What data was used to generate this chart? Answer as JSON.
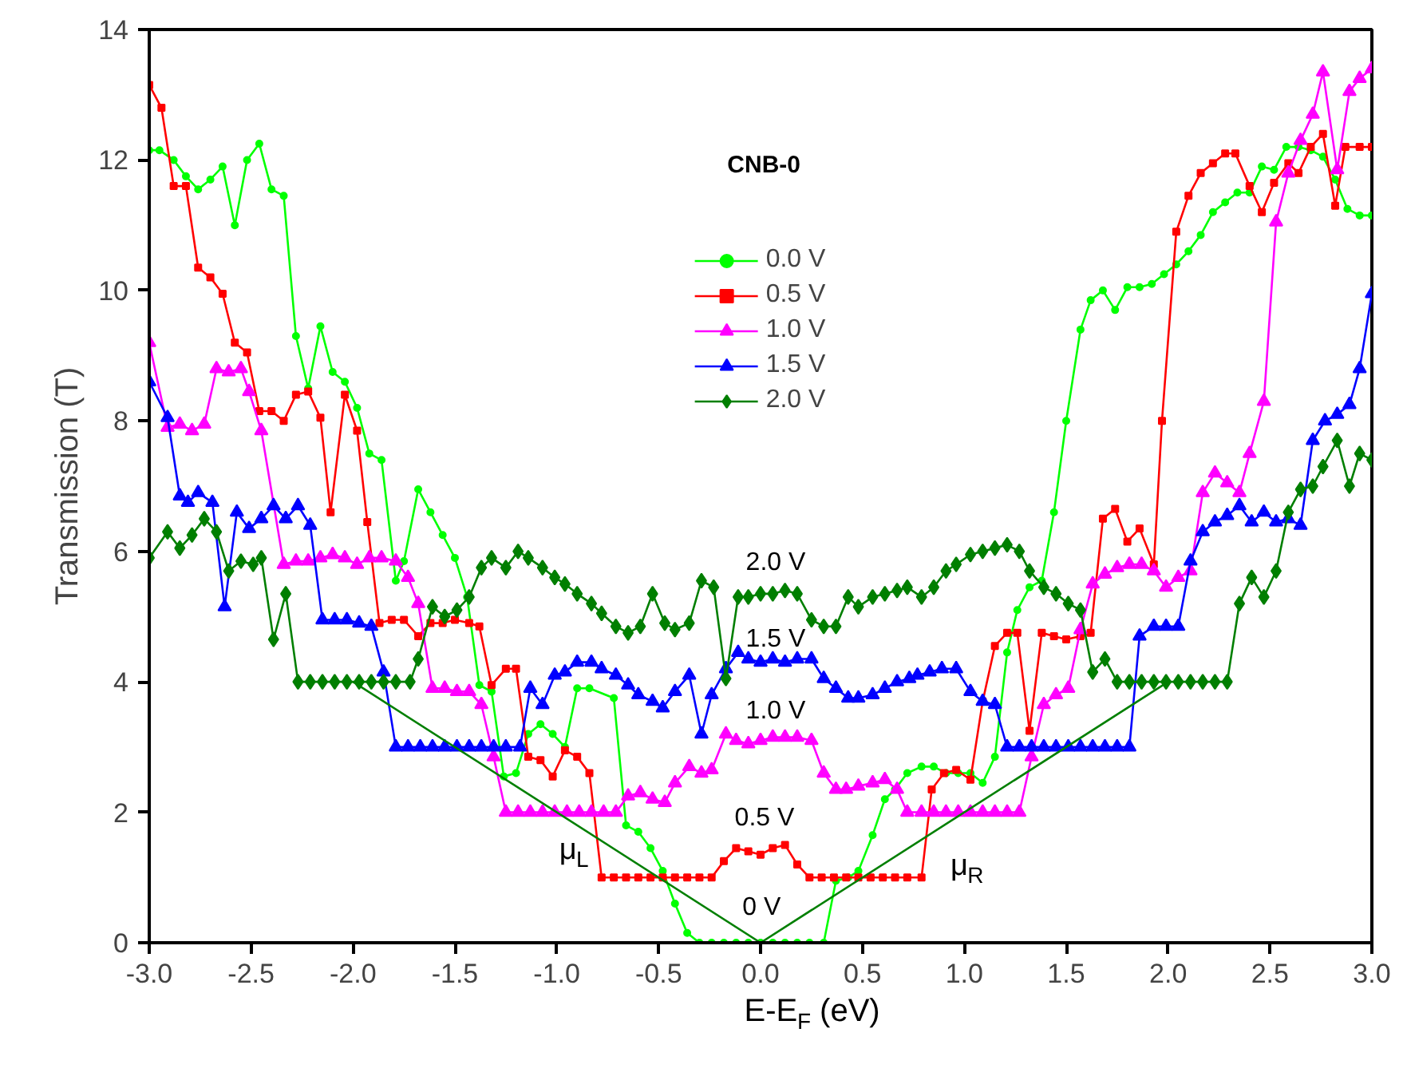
{
  "chart_data": {
    "type": "line",
    "title": "CNB-0",
    "xlabel": "E-E$_{F}$ (eV)",
    "ylabel": "Transmission (T)",
    "xlim": [
      -3.0,
      3.0
    ],
    "ylim": [
      0,
      14
    ],
    "xticks": [
      {
        "value": -3,
        "label": "-3.0"
      },
      {
        "value": -2.5,
        "label": "-2.5"
      },
      {
        "value": -2,
        "label": "-2.0"
      },
      {
        "value": -1.5,
        "label": "-1.5"
      },
      {
        "value": -1,
        "label": "-1.0"
      },
      {
        "value": -0.5,
        "label": "-0.5"
      },
      {
        "value": 0,
        "label": "0.0"
      },
      {
        "value": 0.5,
        "label": "0.5"
      },
      {
        "value": 1,
        "label": "1.0"
      },
      {
        "value": 1.5,
        "label": "1.5"
      },
      {
        "value": 2,
        "label": "2.0"
      },
      {
        "value": 2.5,
        "label": "2.5"
      },
      {
        "value": 3,
        "label": "3.0"
      }
    ],
    "yticks": [
      0,
      2,
      4,
      6,
      8,
      10,
      12,
      14
    ],
    "grid": false,
    "legend": "top",
    "line_style": "solid",
    "series": [
      {
        "name": "0.0 V",
        "color": "#00ff00",
        "marker": "circle",
        "x": [
          -3.0,
          -2.95,
          -2.88,
          -2.82,
          -2.76,
          -2.7,
          -2.64,
          -2.58,
          -2.52,
          -2.46,
          -2.4,
          -2.34,
          -2.28,
          -2.22,
          -2.16,
          -2.1,
          -2.04,
          -1.98,
          -1.92,
          -1.86,
          -1.79,
          -1.75,
          -1.68,
          -1.62,
          -1.56,
          -1.5,
          -1.44,
          -1.38,
          -1.32,
          -1.26,
          -1.2,
          -1.14,
          -1.08,
          -1.02,
          -0.96,
          -0.9,
          -0.84,
          -0.72,
          -0.66,
          -0.6,
          -0.54,
          -0.48,
          -0.42,
          -0.36,
          -0.3,
          -0.24,
          -0.18,
          -0.12,
          -0.06,
          0.0,
          0.06,
          0.12,
          0.18,
          0.24,
          0.31,
          0.37,
          0.43,
          0.48,
          0.55,
          0.61,
          0.66,
          0.72,
          0.79,
          0.85,
          0.91,
          0.97,
          1.03,
          1.09,
          1.15,
          1.21,
          1.26,
          1.32,
          1.38,
          1.44,
          1.5,
          1.57,
          1.62,
          1.68,
          1.74,
          1.8,
          1.86,
          1.92,
          1.98,
          2.04,
          2.1,
          2.16,
          2.22,
          2.28,
          2.34,
          2.4,
          2.46,
          2.52,
          2.58,
          2.64,
          2.7,
          2.76,
          2.82,
          2.88,
          2.94,
          3.0
        ],
        "values": [
          12.15,
          12.15,
          12.0,
          11.75,
          11.55,
          11.7,
          11.9,
          11.0,
          12.0,
          12.25,
          11.55,
          11.45,
          9.3,
          8.5,
          9.45,
          8.75,
          8.6,
          8.2,
          7.5,
          7.4,
          5.55,
          5.85,
          6.95,
          6.6,
          6.25,
          5.9,
          5.3,
          3.95,
          3.85,
          2.55,
          2.6,
          3.2,
          3.35,
          3.2,
          3.0,
          3.9,
          3.9,
          3.75,
          1.8,
          1.7,
          1.45,
          1.1,
          0.6,
          0.15,
          0,
          0,
          0,
          0,
          0,
          0,
          0,
          0,
          0,
          0,
          0,
          0.95,
          1.0,
          1.1,
          1.65,
          2.2,
          2.35,
          2.6,
          2.7,
          2.7,
          2.6,
          2.6,
          2.6,
          2.45,
          2.85,
          4.45,
          5.1,
          5.45,
          5.55,
          6.6,
          8.0,
          9.4,
          9.85,
          10.0,
          9.7,
          10.05,
          10.05,
          10.1,
          10.25,
          10.4,
          10.6,
          10.85,
          11.2,
          11.35,
          11.5,
          11.5,
          11.9,
          11.85,
          12.2,
          12.2,
          12.15,
          12.05,
          11.7,
          11.25,
          11.15,
          11.15
        ]
      },
      {
        "name": "0.5 V",
        "color": "#ff0000",
        "marker": "square",
        "x": [
          -3.0,
          -2.94,
          -2.88,
          -2.82,
          -2.76,
          -2.7,
          -2.64,
          -2.58,
          -2.52,
          -2.46,
          -2.4,
          -2.34,
          -2.28,
          -2.22,
          -2.16,
          -2.11,
          -2.04,
          -1.98,
          -1.93,
          -1.87,
          -1.81,
          -1.75,
          -1.68,
          -1.62,
          -1.56,
          -1.5,
          -1.43,
          -1.38,
          -1.32,
          -1.25,
          -1.2,
          -1.14,
          -1.08,
          -1.02,
          -0.96,
          -0.9,
          -0.84,
          -0.78,
          -0.72,
          -0.66,
          -0.6,
          -0.54,
          -0.48,
          -0.42,
          -0.36,
          -0.3,
          -0.24,
          -0.18,
          -0.12,
          -0.06,
          0.0,
          0.06,
          0.12,
          0.18,
          0.24,
          0.3,
          0.36,
          0.42,
          0.48,
          0.54,
          0.6,
          0.66,
          0.72,
          0.79,
          0.84,
          0.9,
          0.96,
          1.03,
          1.09,
          1.15,
          1.21,
          1.26,
          1.32,
          1.38,
          1.44,
          1.5,
          1.57,
          1.62,
          1.68,
          1.74,
          1.8,
          1.86,
          1.93,
          1.97,
          2.04,
          2.1,
          2.16,
          2.22,
          2.28,
          2.33,
          2.4,
          2.46,
          2.52,
          2.59,
          2.64,
          2.7,
          2.76,
          2.82,
          2.87,
          2.94,
          3.0
        ],
        "values": [
          13.15,
          12.8,
          11.6,
          11.6,
          10.35,
          10.2,
          9.95,
          9.2,
          9.05,
          8.15,
          8.15,
          8.0,
          8.4,
          8.45,
          8.05,
          6.6,
          8.4,
          7.85,
          6.45,
          4.9,
          4.95,
          4.95,
          4.7,
          4.9,
          4.9,
          4.95,
          4.9,
          4.85,
          3.95,
          4.2,
          4.2,
          2.85,
          2.8,
          2.55,
          2.95,
          2.85,
          2.6,
          1.0,
          1.0,
          1.0,
          1.0,
          1.0,
          1.0,
          1.0,
          1.0,
          1.0,
          1.0,
          1.25,
          1.45,
          1.4,
          1.35,
          1.45,
          1.5,
          1.2,
          1.0,
          1.0,
          1.0,
          1.0,
          1.0,
          1.0,
          1.0,
          1.0,
          1.0,
          1.0,
          2.35,
          2.6,
          2.65,
          2.5,
          3.7,
          4.55,
          4.75,
          4.75,
          3.25,
          4.75,
          4.7,
          4.65,
          4.7,
          4.75,
          6.5,
          6.65,
          6.15,
          6.35,
          5.8,
          8.0,
          10.9,
          11.45,
          11.8,
          11.95,
          12.1,
          12.1,
          11.6,
          11.2,
          11.65,
          11.95,
          11.8,
          12.2,
          12.4,
          11.3,
          12.2,
          12.2,
          12.2
        ]
      },
      {
        "name": "1.0 V",
        "color": "#ff00ff",
        "marker": "triangle",
        "x": [
          -3.0,
          -2.91,
          -2.85,
          -2.79,
          -2.73,
          -2.67,
          -2.61,
          -2.55,
          -2.51,
          -2.45,
          -2.34,
          -2.28,
          -2.22,
          -2.16,
          -2.1,
          -2.04,
          -1.98,
          -1.92,
          -1.86,
          -1.79,
          -1.73,
          -1.68,
          -1.61,
          -1.55,
          -1.49,
          -1.43,
          -1.37,
          -1.31,
          -1.25,
          -1.19,
          -1.13,
          -1.07,
          -1.01,
          -0.95,
          -0.89,
          -0.83,
          -0.77,
          -0.71,
          -0.65,
          -0.59,
          -0.53,
          -0.47,
          -0.42,
          -0.35,
          -0.29,
          -0.24,
          -0.17,
          -0.12,
          -0.06,
          0.0,
          0.06,
          0.12,
          0.18,
          0.25,
          0.31,
          0.37,
          0.42,
          0.48,
          0.55,
          0.61,
          0.67,
          0.72,
          0.79,
          0.85,
          0.91,
          0.97,
          1.03,
          1.09,
          1.15,
          1.21,
          1.27,
          1.33,
          1.39,
          1.45,
          1.51,
          1.57,
          1.63,
          1.69,
          1.75,
          1.81,
          1.87,
          1.93,
          1.99,
          2.05,
          2.11,
          2.17,
          2.23,
          2.29,
          2.35,
          2.4,
          2.47,
          2.53,
          2.59,
          2.65,
          2.71,
          2.76,
          2.83,
          2.89,
          2.94,
          3.0
        ],
        "values": [
          9.2,
          7.9,
          7.95,
          7.85,
          7.95,
          8.8,
          8.75,
          8.8,
          8.45,
          7.85,
          5.8,
          5.85,
          5.85,
          5.9,
          5.95,
          5.9,
          5.8,
          5.9,
          5.9,
          5.85,
          5.6,
          5.2,
          3.9,
          3.9,
          3.85,
          3.85,
          3.65,
          2.85,
          2.0,
          2.0,
          2.0,
          2.0,
          2.0,
          2.0,
          2.0,
          2.0,
          2.0,
          2.0,
          2.25,
          2.3,
          2.2,
          2.15,
          2.45,
          2.7,
          2.6,
          2.65,
          3.2,
          3.1,
          3.05,
          3.1,
          3.15,
          3.15,
          3.15,
          3.1,
          2.6,
          2.35,
          2.35,
          2.4,
          2.45,
          2.5,
          2.35,
          2.0,
          2.0,
          2.0,
          2.0,
          2.0,
          2.0,
          2.0,
          2.0,
          2.0,
          2.0,
          2.85,
          3.65,
          3.8,
          3.9,
          4.8,
          5.5,
          5.65,
          5.75,
          5.8,
          5.8,
          5.7,
          5.45,
          5.6,
          5.7,
          6.9,
          7.2,
          7.05,
          6.9,
          7.5,
          8.3,
          11.05,
          11.8,
          12.3,
          12.7,
          13.35,
          11.85,
          13.05,
          13.25,
          13.4
        ]
      },
      {
        "name": "1.5 V",
        "color": "#0000ff",
        "marker": "triangle",
        "x": [
          -3.0,
          -2.91,
          -2.85,
          -2.81,
          -2.76,
          -2.69,
          -2.63,
          -2.57,
          -2.51,
          -2.45,
          -2.39,
          -2.33,
          -2.27,
          -2.21,
          -2.15,
          -2.09,
          -2.03,
          -1.97,
          -1.91,
          -1.85,
          -1.79,
          -1.73,
          -1.67,
          -1.61,
          -1.55,
          -1.49,
          -1.43,
          -1.37,
          -1.31,
          -1.25,
          -1.18,
          -1.13,
          -1.07,
          -1.01,
          -0.96,
          -0.9,
          -0.83,
          -0.78,
          -0.71,
          -0.65,
          -0.6,
          -0.53,
          -0.48,
          -0.42,
          -0.35,
          -0.29,
          -0.24,
          -0.17,
          -0.11,
          -0.06,
          0.0,
          0.06,
          0.12,
          0.18,
          0.25,
          0.31,
          0.37,
          0.43,
          0.48,
          0.55,
          0.61,
          0.67,
          0.73,
          0.77,
          0.83,
          0.89,
          0.96,
          1.03,
          1.09,
          1.15,
          1.21,
          1.27,
          1.33,
          1.39,
          1.45,
          1.51,
          1.57,
          1.63,
          1.69,
          1.75,
          1.81,
          1.86,
          1.93,
          1.99,
          2.05,
          2.11,
          2.17,
          2.23,
          2.29,
          2.35,
          2.41,
          2.47,
          2.53,
          2.59,
          2.65,
          2.71,
          2.77,
          2.83,
          2.89,
          2.94,
          3.0
        ],
        "values": [
          8.6,
          8.05,
          6.85,
          6.75,
          6.9,
          6.75,
          5.15,
          6.6,
          6.35,
          6.5,
          6.7,
          6.5,
          6.7,
          6.4,
          4.95,
          4.95,
          4.95,
          4.9,
          4.85,
          4.15,
          3,
          3,
          3,
          3,
          3,
          3,
          3,
          3,
          3,
          3,
          3.0,
          3.9,
          3.65,
          4.1,
          4.15,
          4.3,
          4.3,
          4.2,
          4.1,
          3.95,
          3.8,
          3.7,
          3.6,
          3.85,
          4.1,
          3.2,
          3.8,
          4.2,
          4.45,
          4.35,
          4.3,
          4.35,
          4.3,
          4.35,
          4.35,
          4.05,
          3.9,
          3.75,
          3.75,
          3.8,
          3.9,
          4.0,
          4.05,
          4.1,
          4.15,
          4.2,
          4.2,
          3.85,
          3.7,
          3.65,
          3,
          3,
          3,
          3,
          3,
          3,
          3,
          3,
          3,
          3,
          3.0,
          4.7,
          4.85,
          4.85,
          4.85,
          5.85,
          6.3,
          6.45,
          6.55,
          6.7,
          6.45,
          6.6,
          6.45,
          6.5,
          6.4,
          7.7,
          8.0,
          8.1,
          8.25,
          8.8,
          9.95
        ]
      },
      {
        "name": "2.0 V",
        "color": "#007f00",
        "marker": "diamond",
        "x": [
          -3.0,
          -2.91,
          -2.85,
          -2.79,
          -2.73,
          -2.67,
          -2.61,
          -2.55,
          -2.49,
          -2.45,
          -2.39,
          -2.33,
          -2.27,
          -2.21,
          -2.15,
          -2.09,
          -2.03,
          -1.97,
          -1.91,
          -1.85,
          -1.79,
          -1.72,
          -1.68,
          -1.61,
          -1.55,
          -1.49,
          -1.43,
          -1.37,
          -1.32,
          -1.25,
          -1.19,
          -1.14,
          -1.07,
          -1.01,
          -0.96,
          -0.9,
          -0.83,
          -0.78,
          -0.71,
          -0.65,
          -0.59,
          -0.53,
          -0.47,
          -0.42,
          -0.35,
          -0.29,
          -0.23,
          -0.17,
          -0.11,
          -0.06,
          0.0,
          0.06,
          0.12,
          0.18,
          0.25,
          0.31,
          0.37,
          0.43,
          0.48,
          0.55,
          0.61,
          0.67,
          0.72,
          0.79,
          0.85,
          0.91,
          0.96,
          1.03,
          1.09,
          1.15,
          1.21,
          1.27,
          1.32,
          1.39,
          1.45,
          1.51,
          1.57,
          1.63,
          1.69,
          1.75,
          1.81,
          1.87,
          1.93,
          1.99,
          2.05,
          2.11,
          2.17,
          2.23,
          2.29,
          2.35,
          2.41,
          2.47,
          2.53,
          2.59,
          2.65,
          2.71,
          2.76,
          2.83,
          2.89,
          2.94,
          3.0
        ],
        "values": [
          5.9,
          6.3,
          6.05,
          6.25,
          6.5,
          6.3,
          5.7,
          5.85,
          5.8,
          5.9,
          4.65,
          5.35,
          4.0,
          4.0,
          4.0,
          4.0,
          4.0,
          4.0,
          4.0,
          4.0,
          4.0,
          4.0,
          4.35,
          5.15,
          5.0,
          5.1,
          5.3,
          5.75,
          5.9,
          5.75,
          6.0,
          5.9,
          5.75,
          5.6,
          5.5,
          5.35,
          5.2,
          5.05,
          4.85,
          4.75,
          4.85,
          5.35,
          4.9,
          4.8,
          4.9,
          5.55,
          5.45,
          4.05,
          5.3,
          5.3,
          5.35,
          5.35,
          5.4,
          5.35,
          4.95,
          4.85,
          4.85,
          5.3,
          5.15,
          5.3,
          5.35,
          5.4,
          5.45,
          5.3,
          5.45,
          5.7,
          5.8,
          5.95,
          6.0,
          6.05,
          6.1,
          6.0,
          5.7,
          5.45,
          5.35,
          5.2,
          5.1,
          4.15,
          4.35,
          4.0,
          4.0,
          4.0,
          4.0,
          4.0,
          4.0,
          4.0,
          4.0,
          4.0,
          4.0,
          5.2,
          5.6,
          5.3,
          5.7,
          6.6,
          6.95,
          7.0,
          7.3,
          7.7,
          7.0,
          7.5,
          7.4
        ]
      },
      {
        "color": "#007f00",
        "marker": "none",
        "x": [
          -2.0,
          0.0,
          2.0
        ],
        "values": [
          4,
          0,
          4
        ]
      }
    ],
    "annotations": [
      "0 V",
      "0.5 V",
      "1.0 V",
      "1.5 V",
      "2.0 V",
      "μ$_{L}$",
      "μ$_{R}$"
    ]
  }
}
